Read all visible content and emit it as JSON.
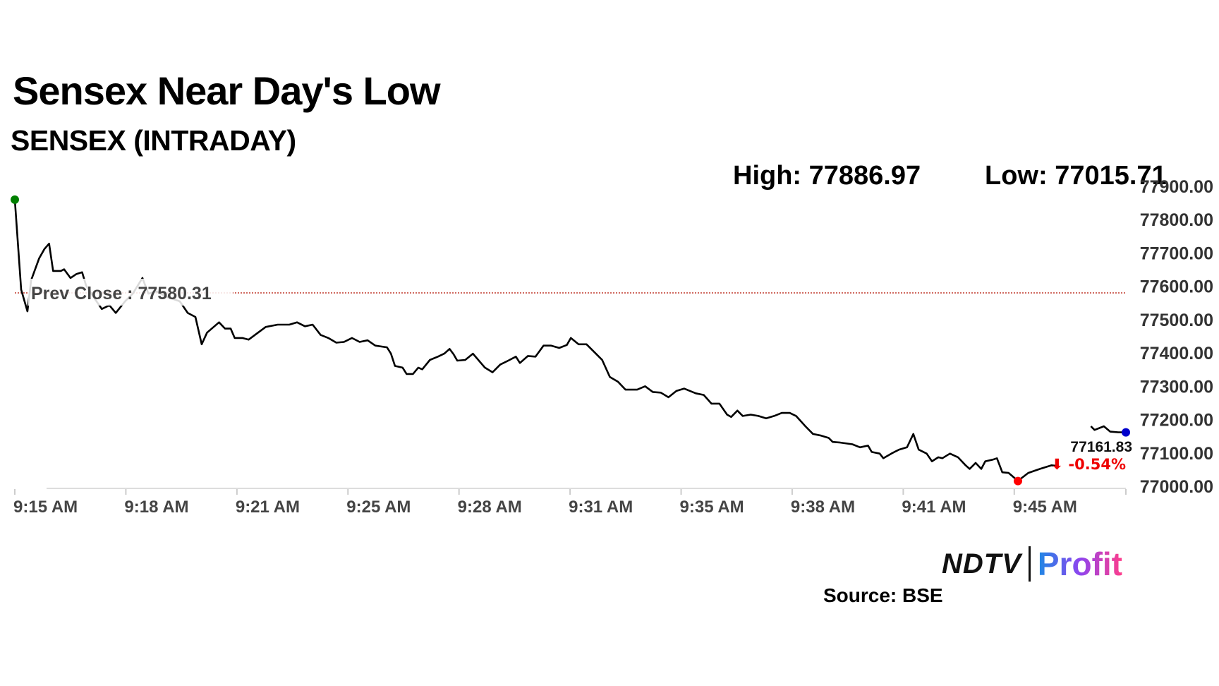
{
  "header": {
    "title": "Sensex Near Day's Low",
    "subtitle": "SENSEX (INTRADAY)",
    "high_text": "High: 77886.97",
    "low_text": "Low: 77015.71"
  },
  "footer": {
    "logo_left": "NDTV",
    "logo_right": "Profit",
    "source": "Source: BSE"
  },
  "colors": {
    "line": "#000000",
    "prev_close": "#c0392b",
    "open_marker": "#008000",
    "low_marker": "#ff0000",
    "last_marker": "#0000cc",
    "change_negative": "#ee0000"
  },
  "chart_data": {
    "type": "line",
    "title": "SENSEX (INTRADAY)",
    "xlabel": "",
    "ylabel": "",
    "x_unit": "minutes since 9:15 AM",
    "xlim": [
      0,
      33.35
    ],
    "ylim": [
      77000,
      77900
    ],
    "grid": false,
    "y_ticks": [
      77000,
      77100,
      77200,
      77300,
      77400,
      77500,
      77600,
      77700,
      77800,
      77900
    ],
    "y_tick_labels": [
      "77000.00",
      "77100.00",
      "77200.00",
      "77300.00",
      "77400.00",
      "77500.00",
      "77600.00",
      "77700.00",
      "77800.00",
      "77900.00"
    ],
    "x_ticks": [
      0,
      3.333,
      6.667,
      10,
      13.333,
      16.667,
      20,
      23.333,
      26.667,
      30,
      33.35
    ],
    "x_tick_labels": [
      "9:15 AM",
      "9:18 AM",
      "9:21 AM",
      "9:25 AM",
      "9:28 AM",
      "9:31 AM",
      "9:35 AM",
      "9:38 AM",
      "9:41 AM",
      "9:45 AM",
      ""
    ],
    "prev_close": {
      "label": "Prev Close : 77580.31",
      "value": 77580.31
    },
    "last": {
      "value_label": "77161.83",
      "change_label": "⬇ -0.54%",
      "value": 77161.83
    },
    "markers": {
      "open": [
        0,
        77860
      ],
      "low": [
        30.11,
        77015.71
      ],
      "last": [
        33.35,
        77161.83
      ]
    },
    "series": [
      {
        "name": "SENSEX",
        "points": [
          [
            0,
            77860
          ],
          [
            0.19,
            77590
          ],
          [
            0.38,
            77525
          ],
          [
            0.49,
            77618
          ],
          [
            0.73,
            77684
          ],
          [
            0.89,
            77712
          ],
          [
            1.03,
            77728
          ],
          [
            1.15,
            77646
          ],
          [
            1.38,
            77646
          ],
          [
            1.48,
            77651
          ],
          [
            1.67,
            77625
          ],
          [
            1.85,
            77637
          ],
          [
            2.02,
            77642
          ],
          [
            2.14,
            77602
          ],
          [
            2.37,
            77567
          ],
          [
            2.61,
            77532
          ],
          [
            2.84,
            77543
          ],
          [
            3.03,
            77520
          ],
          [
            3.31,
            77555
          ],
          [
            3.54,
            77578
          ],
          [
            3.83,
            77625
          ],
          [
            4.01,
            77578
          ],
          [
            4.25,
            77585
          ],
          [
            4.6,
            77567
          ],
          [
            4.95,
            77555
          ],
          [
            5.19,
            77520
          ],
          [
            5.42,
            77508
          ],
          [
            5.61,
            77426
          ],
          [
            5.77,
            77461
          ],
          [
            6.13,
            77492
          ],
          [
            6.31,
            77473
          ],
          [
            6.48,
            77473
          ],
          [
            6.6,
            77445
          ],
          [
            6.83,
            77445
          ],
          [
            7.02,
            77440
          ],
          [
            7.3,
            77461
          ],
          [
            7.53,
            77478
          ],
          [
            7.89,
            77485
          ],
          [
            8.24,
            77485
          ],
          [
            8.47,
            77492
          ],
          [
            8.71,
            77480
          ],
          [
            8.94,
            77485
          ],
          [
            9.18,
            77454
          ],
          [
            9.41,
            77445
          ],
          [
            9.65,
            77431
          ],
          [
            9.88,
            77433
          ],
          [
            10.12,
            77445
          ],
          [
            10.35,
            77433
          ],
          [
            10.59,
            77438
          ],
          [
            10.82,
            77422
          ],
          [
            11.17,
            77417
          ],
          [
            11.29,
            77398
          ],
          [
            11.41,
            77361
          ],
          [
            11.64,
            77356
          ],
          [
            11.76,
            77337
          ],
          [
            11.95,
            77337
          ],
          [
            12.11,
            77356
          ],
          [
            12.23,
            77351
          ],
          [
            12.46,
            77379
          ],
          [
            12.7,
            77389
          ],
          [
            12.89,
            77398
          ],
          [
            13.05,
            77412
          ],
          [
            13.17,
            77396
          ],
          [
            13.28,
            77377
          ],
          [
            13.52,
            77379
          ],
          [
            13.75,
            77398
          ],
          [
            13.99,
            77370
          ],
          [
            14.11,
            77356
          ],
          [
            14.34,
            77342
          ],
          [
            14.57,
            77365
          ],
          [
            14.81,
            77377
          ],
          [
            15.04,
            77389
          ],
          [
            15.16,
            77370
          ],
          [
            15.4,
            77391
          ],
          [
            15.63,
            77389
          ],
          [
            15.87,
            77422
          ],
          [
            16.1,
            77422
          ],
          [
            16.34,
            77415
          ],
          [
            16.57,
            77424
          ],
          [
            16.69,
            77445
          ],
          [
            16.92,
            77426
          ],
          [
            17.16,
            77426
          ],
          [
            17.39,
            77403
          ],
          [
            17.63,
            77379
          ],
          [
            17.86,
            77328
          ],
          [
            18.1,
            77314
          ],
          [
            18.33,
            77290
          ],
          [
            18.68,
            77290
          ],
          [
            18.92,
            77300
          ],
          [
            19.15,
            77283
          ],
          [
            19.39,
            77281
          ],
          [
            19.62,
            77267
          ],
          [
            19.86,
            77286
          ],
          [
            20.09,
            77293
          ],
          [
            20.44,
            77279
          ],
          [
            20.68,
            77274
          ],
          [
            20.91,
            77248
          ],
          [
            21.15,
            77248
          ],
          [
            21.38,
            77215
          ],
          [
            21.5,
            77208
          ],
          [
            21.69,
            77227
          ],
          [
            21.85,
            77211
          ],
          [
            22.09,
            77215
          ],
          [
            22.32,
            77211
          ],
          [
            22.55,
            77204
          ],
          [
            22.79,
            77211
          ],
          [
            23.02,
            77220
          ],
          [
            23.26,
            77220
          ],
          [
            23.45,
            77211
          ],
          [
            23.73,
            77180
          ],
          [
            23.96,
            77157
          ],
          [
            24.2,
            77152
          ],
          [
            24.43,
            77145
          ],
          [
            24.55,
            77133
          ],
          [
            24.78,
            77131
          ],
          [
            25.14,
            77126
          ],
          [
            25.37,
            77117
          ],
          [
            25.61,
            77122
          ],
          [
            25.72,
            77103
          ],
          [
            25.96,
            77098
          ],
          [
            26.07,
            77084
          ],
          [
            26.31,
            77098
          ],
          [
            26.54,
            77110
          ],
          [
            26.78,
            77117
          ],
          [
            26.97,
            77157
          ],
          [
            27.13,
            77110
          ],
          [
            27.37,
            77098
          ],
          [
            27.53,
            77075
          ],
          [
            27.72,
            77087
          ],
          [
            27.84,
            77084
          ],
          [
            28.07,
            77098
          ],
          [
            28.31,
            77087
          ],
          [
            28.54,
            77063
          ],
          [
            28.66,
            77052
          ],
          [
            28.84,
            77070
          ],
          [
            29.01,
            77052
          ],
          [
            29.13,
            77075
          ],
          [
            29.36,
            77080
          ],
          [
            29.48,
            77084
          ],
          [
            29.64,
            77042
          ],
          [
            29.83,
            77040
          ],
          [
            30.11,
            77016
          ],
          [
            30.42,
            77040
          ],
          [
            30.77,
            77052
          ],
          [
            31.12,
            77063
          ],
          [
            31.29,
            77061
          ],
          null,
          [
            32.3,
            77180
          ],
          [
            32.41,
            77169
          ],
          [
            32.69,
            77180
          ],
          [
            32.88,
            77164
          ],
          [
            33.12,
            77162
          ],
          [
            33.35,
            77162
          ]
        ]
      }
    ]
  }
}
